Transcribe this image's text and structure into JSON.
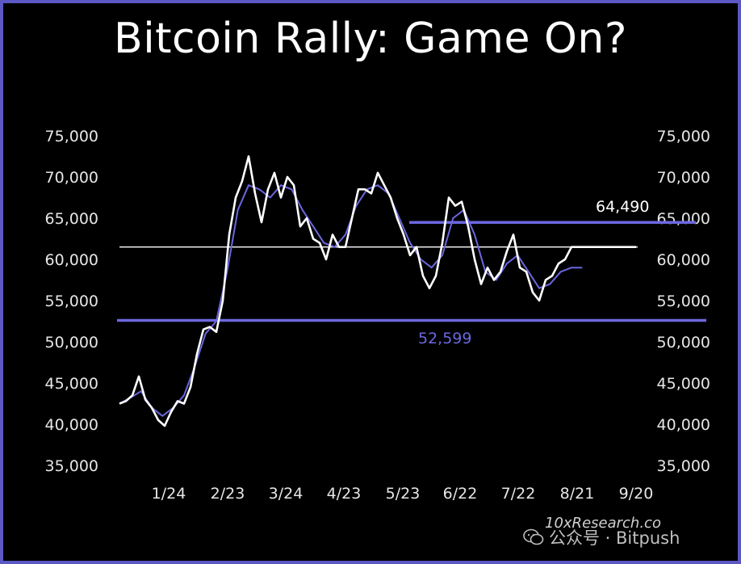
{
  "chart_data": {
    "type": "line",
    "title": "Bitcoin Rally: Game On?",
    "y_ticks": [
      "75,000",
      "70,000",
      "65,000",
      "60,000",
      "55,000",
      "50,000",
      "45,000",
      "40,000",
      "35,000"
    ],
    "ylim": [
      35000,
      75000
    ],
    "x_ticks": [
      "1/24",
      "2/23",
      "3/24",
      "4/23",
      "5/23",
      "6/22",
      "7/22",
      "8/21",
      "9/20"
    ],
    "grid": false,
    "annotations": [
      {
        "text": "64,490",
        "value": 64490
      },
      {
        "text": "52,599",
        "value": 52599
      }
    ],
    "reference_lines": [
      {
        "name": "support",
        "value": 52599,
        "color": "#6c67df"
      },
      {
        "name": "resistance",
        "value": 64490,
        "color": "#6c67df"
      },
      {
        "name": "current",
        "value": 61500,
        "color": "#ffffff"
      }
    ],
    "series": [
      {
        "color": "#ffffff",
        "x": [
          0,
          3,
          6,
          9,
          12,
          15,
          18,
          21,
          24,
          27,
          30,
          33,
          36,
          39,
          42,
          45,
          48,
          51,
          54,
          57,
          60,
          63,
          66,
          69,
          72,
          75,
          78,
          81,
          84,
          87,
          90,
          93,
          96,
          99,
          102,
          105,
          108,
          111,
          114,
          117,
          120,
          123,
          126,
          129,
          132,
          135,
          138,
          141,
          144,
          147,
          150,
          153,
          156,
          159,
          162,
          165,
          168,
          171,
          174,
          177,
          180,
          183,
          186,
          189,
          192,
          195,
          198,
          201,
          204,
          207,
          210,
          213,
          216,
          219,
          222,
          225,
          228,
          231,
          234,
          237,
          240
        ],
        "values": [
          42500,
          42800,
          43500,
          45800,
          43000,
          42000,
          40500,
          39800,
          41500,
          42800,
          42500,
          44500,
          48500,
          51500,
          51800,
          51200,
          55000,
          63000,
          67500,
          69500,
          72500,
          68000,
          64500,
          68500,
          70500,
          67500,
          70000,
          69000,
          64000,
          65000,
          62500,
          62000,
          60000,
          63000,
          61500,
          61500,
          65000,
          68500,
          68500,
          68000,
          70500,
          69000,
          67500,
          65000,
          63000,
          60500,
          61500,
          58000,
          56500,
          58000,
          62000,
          67500,
          66500,
          67000,
          64000,
          60000,
          57000,
          59000,
          57500,
          58500,
          61000,
          63000,
          59000,
          58500,
          56000,
          55000,
          57500,
          58000,
          59500,
          60000,
          61500,
          61500,
          61500,
          61500,
          61500,
          61500,
          61500,
          61500,
          61500,
          61500,
          61500
        ]
      },
      {
        "color": "#6c67df",
        "x": [
          0,
          5,
          10,
          15,
          20,
          25,
          30,
          35,
          40,
          45,
          50,
          55,
          60,
          65,
          70,
          75,
          80,
          85,
          90,
          95,
          100,
          105,
          110,
          115,
          120,
          125,
          130,
          135,
          140,
          145,
          150,
          155,
          160,
          165,
          170,
          175,
          180,
          185,
          190,
          195,
          200,
          205,
          210,
          215
        ],
        "values": [
          42500,
          43200,
          44000,
          42000,
          41000,
          42000,
          43500,
          47000,
          51000,
          52500,
          58500,
          66000,
          69000,
          68500,
          67500,
          69000,
          68500,
          66000,
          64000,
          62000,
          61500,
          63000,
          66500,
          68500,
          69000,
          68000,
          65000,
          62000,
          60000,
          59000,
          60500,
          65000,
          66000,
          63000,
          58500,
          57500,
          59500,
          60500,
          58500,
          56500,
          57000,
          58500,
          59000,
          59000
        ]
      }
    ]
  },
  "watermark": "10xResearch.co",
  "wechat_label": "公众号 · Bitpush"
}
